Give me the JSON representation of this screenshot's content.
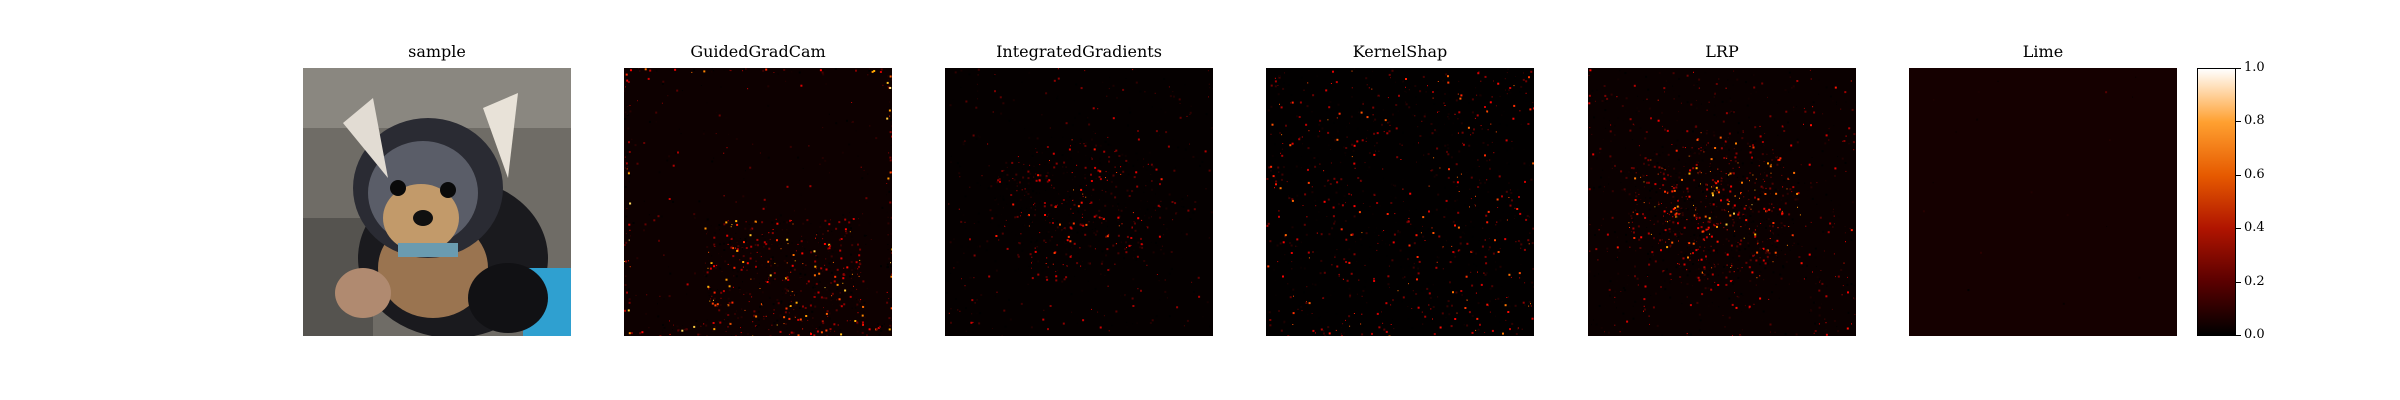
{
  "chart_data": {
    "type": "heatmap",
    "colormap": "gist_heat",
    "panels": [
      {
        "title": "sample",
        "kind": "photo",
        "description_hidden": true
      },
      {
        "title": "GuidedGradCam",
        "kind": "attribution"
      },
      {
        "title": "IntegratedGradients",
        "kind": "attribution"
      },
      {
        "title": "KernelShap",
        "kind": "attribution"
      },
      {
        "title": "LRP",
        "kind": "attribution"
      },
      {
        "title": "Lime",
        "kind": "attribution"
      }
    ],
    "colorbar": {
      "range": [
        0.0,
        1.0
      ],
      "ticks": [
        "0.0",
        "0.2",
        "0.4",
        "0.6",
        "0.8",
        "1.0"
      ],
      "colors": [
        "#000000",
        "#5a0000",
        "#b01400",
        "#e65a00",
        "#ffa030",
        "#ffffff"
      ]
    }
  }
}
